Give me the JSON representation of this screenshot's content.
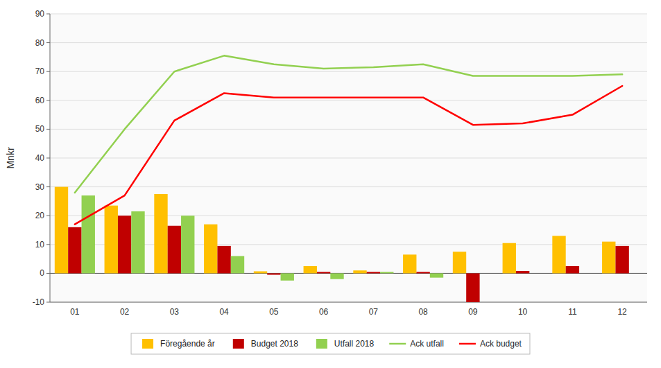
{
  "chart_data": {
    "type": "bar",
    "categories": [
      "01",
      "02",
      "03",
      "04",
      "05",
      "06",
      "07",
      "08",
      "09",
      "10",
      "11",
      "12"
    ],
    "series": [
      {
        "name": "Föregående år",
        "type": "bar",
        "color": "#FFC000",
        "values": [
          30,
          23.5,
          27.5,
          17,
          0.7,
          2.5,
          1,
          6.5,
          7.5,
          10.5,
          13,
          11
        ]
      },
      {
        "name": "Budget 2018",
        "type": "bar",
        "color": "#C00000",
        "values": [
          16,
          20,
          16.5,
          9.5,
          -0.5,
          0.5,
          0.5,
          0.5,
          -10,
          0.8,
          2.5,
          9.5
        ]
      },
      {
        "name": "Utfall 2018",
        "type": "bar",
        "color": "#92D050",
        "values": [
          27,
          21.5,
          20,
          6,
          -2.5,
          -2,
          0.5,
          -1.5,
          0,
          0,
          0,
          0
        ]
      },
      {
        "name": "Ack utfall",
        "type": "line",
        "color": "#92D050",
        "values": [
          28,
          50,
          70,
          75.5,
          72.5,
          71,
          71.5,
          72.5,
          68.5,
          68.5,
          68.5,
          69
        ]
      },
      {
        "name": "Ack budget",
        "type": "line",
        "color": "#FF0000",
        "values": [
          17,
          27,
          53,
          62.5,
          61,
          61,
          61,
          61,
          51.5,
          52,
          55,
          65
        ]
      }
    ],
    "ylabel": "Mnkr",
    "ylim": [
      -10,
      90
    ],
    "yticks": [
      -10,
      0,
      10,
      20,
      30,
      40,
      50,
      60,
      70,
      80,
      90
    ],
    "grid": true,
    "legend": "bottom"
  }
}
